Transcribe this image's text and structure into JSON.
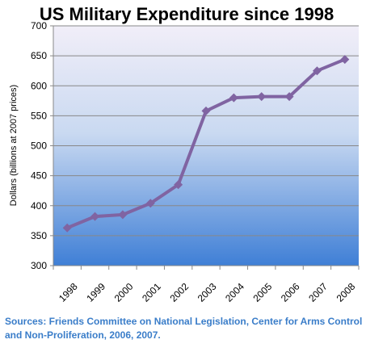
{
  "chart_data": {
    "type": "line",
    "title": "US Military Expenditure since 1998",
    "xlabel": "",
    "ylabel": "Dollars (billions at 2007 prices)",
    "categories": [
      "1998",
      "1999",
      "2000",
      "2001",
      "2002",
      "2003",
      "2004",
      "2005",
      "2006",
      "2007",
      "2008"
    ],
    "series": [
      {
        "values": [
          363,
          382,
          385,
          404,
          435,
          558,
          580,
          582,
          582,
          625,
          644
        ]
      }
    ],
    "ylim": [
      300,
      700
    ],
    "yticks": [
      "300",
      "350",
      "400",
      "450",
      "500",
      "550",
      "600",
      "650",
      "700"
    ],
    "grid": true,
    "colors": {
      "line": "#8064a2",
      "gridline": "#888888",
      "plot_gradient_top": "#f1eef8",
      "plot_gradient_bottom": "#3f7fd6",
      "source": "#3a7dc9"
    }
  },
  "source": {
    "line1": "Sources: Friends Committee on National Legislation, Center for Arms Control",
    "line2": "and Non-Proliferation, 2006, 2007."
  }
}
